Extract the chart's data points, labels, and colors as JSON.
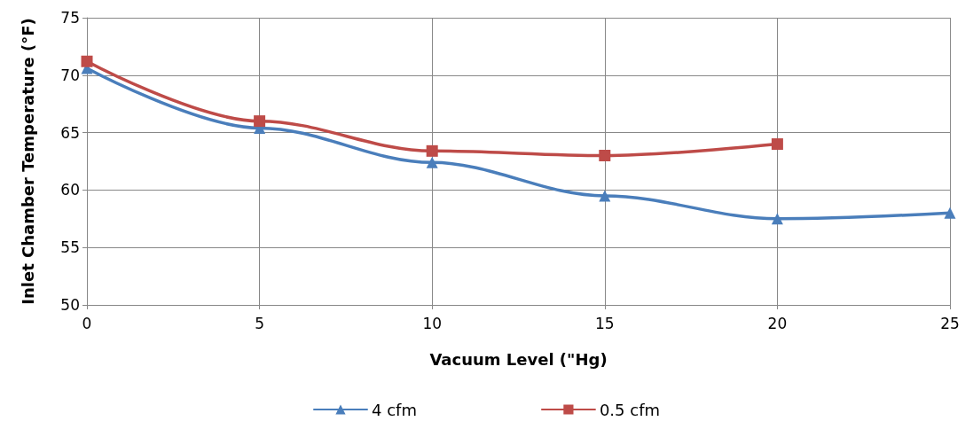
{
  "chart_data": {
    "type": "line",
    "xlabel": "Vacuum Level (\"Hg)",
    "ylabel": "Inlet Chamber Temperature (°F)",
    "x": [
      0,
      5,
      10,
      15,
      20,
      25
    ],
    "series": [
      {
        "name": "4 cfm",
        "color": "#4a7ebb",
        "marker": "triangle",
        "values": [
          70.6,
          65.4,
          62.4,
          59.5,
          57.5,
          58
        ]
      },
      {
        "name": "0.5 cfm",
        "color": "#be4b48",
        "marker": "square",
        "x": [
          0,
          5,
          10,
          15,
          20
        ],
        "values": [
          71.2,
          66,
          63.4,
          63,
          64
        ]
      }
    ],
    "xlim": [
      0,
      25
    ],
    "xticks": [
      0,
      5,
      10,
      15,
      20,
      25
    ],
    "ylim": [
      50,
      75
    ],
    "yticks": [
      50,
      55,
      60,
      65,
      70,
      75
    ],
    "grid": true,
    "legend": "bottom"
  }
}
